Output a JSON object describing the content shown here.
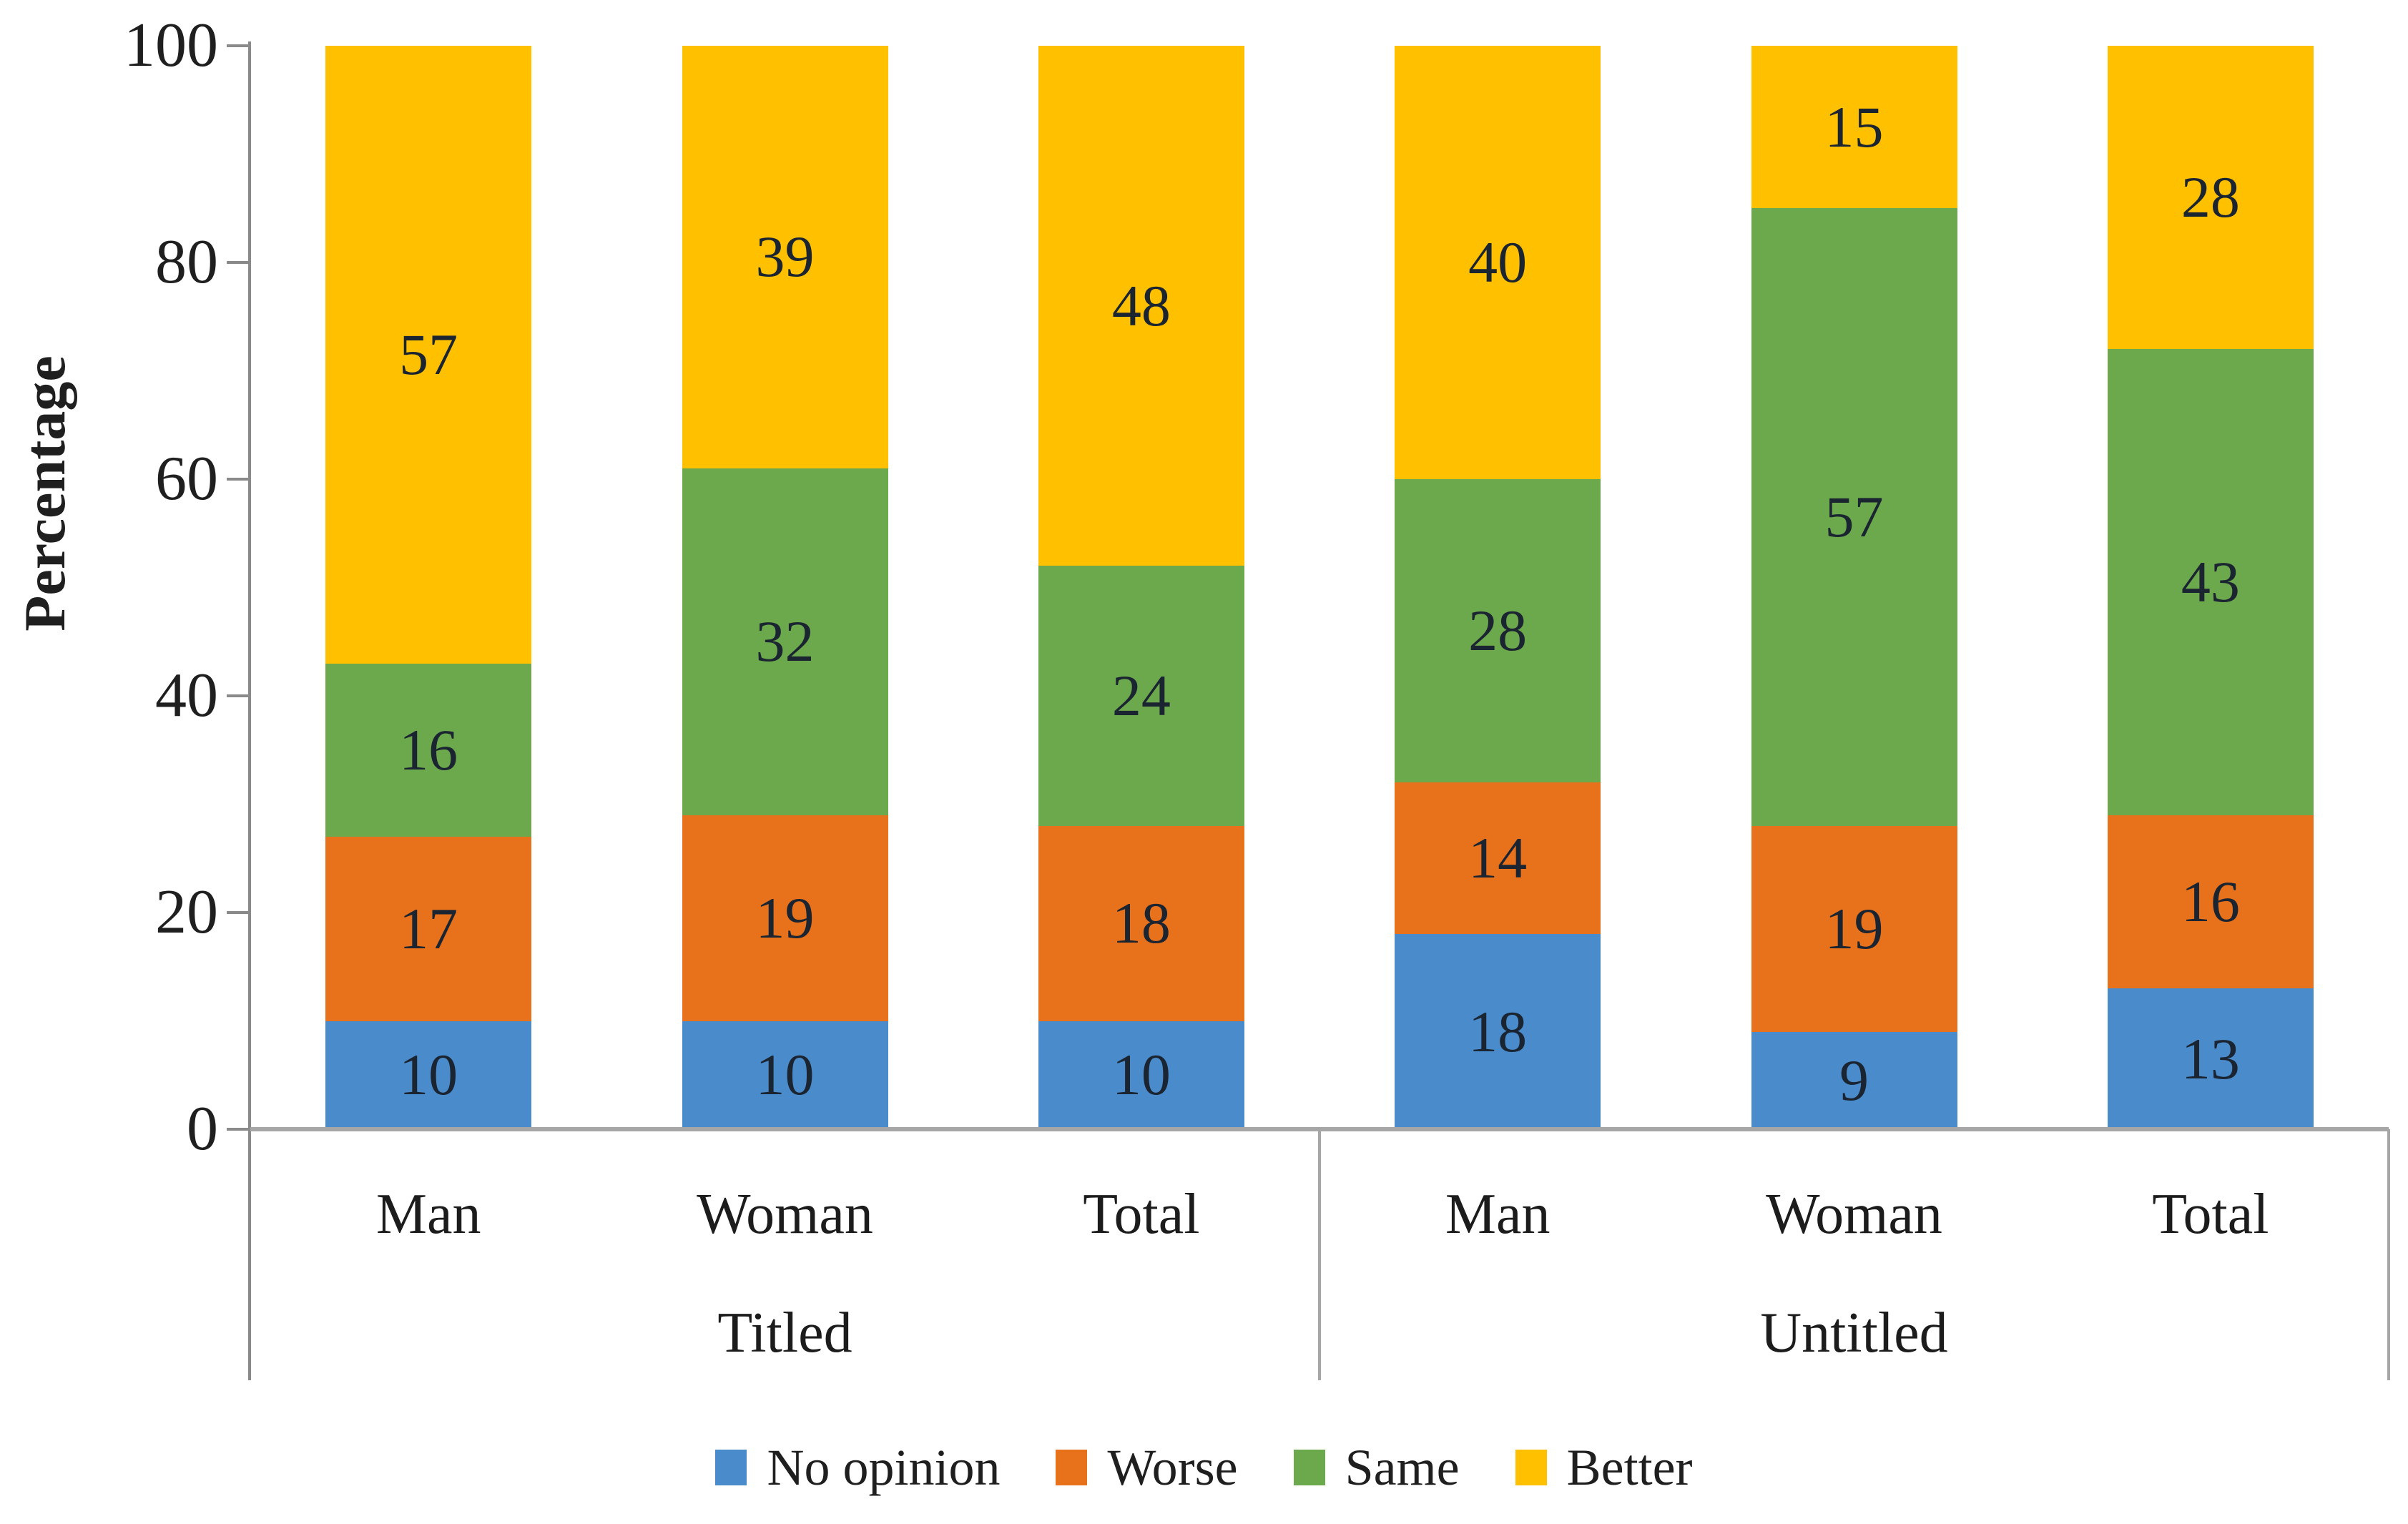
{
  "chart_data": {
    "type": "bar",
    "stacked": true,
    "title": "",
    "ylabel": "Percentage",
    "xlabel": "",
    "ylim": [
      0,
      100
    ],
    "yticks": [
      0,
      20,
      40,
      60,
      80,
      100
    ],
    "grid": false,
    "legend_position": "bottom",
    "group_labels": [
      "Titled",
      "Untitled"
    ],
    "categories": [
      "Man",
      "Woman",
      "Total",
      "Man",
      "Woman",
      "Total"
    ],
    "category_group_index": [
      0,
      0,
      0,
      1,
      1,
      1
    ],
    "series": [
      {
        "name": "No opinion",
        "color": "#4A8CCB",
        "values": [
          10,
          10,
          10,
          18,
          9,
          13
        ]
      },
      {
        "name": "Worse",
        "color": "#E8721C",
        "values": [
          17,
          19,
          18,
          14,
          19,
          16
        ]
      },
      {
        "name": "Same",
        "color": "#6CA84C",
        "values": [
          16,
          32,
          24,
          28,
          57,
          43
        ]
      },
      {
        "name": "Better",
        "color": "#FFC000",
        "values": [
          57,
          39,
          48,
          40,
          15,
          28
        ]
      }
    ]
  },
  "colors": {
    "axis_line": "#8a8a8a",
    "baseline": "#a6a6a6",
    "box_line": "#a6a6a6",
    "tick_text": "#1f1f1f",
    "data_label_text": "#1b2431",
    "background": "#ffffff"
  }
}
